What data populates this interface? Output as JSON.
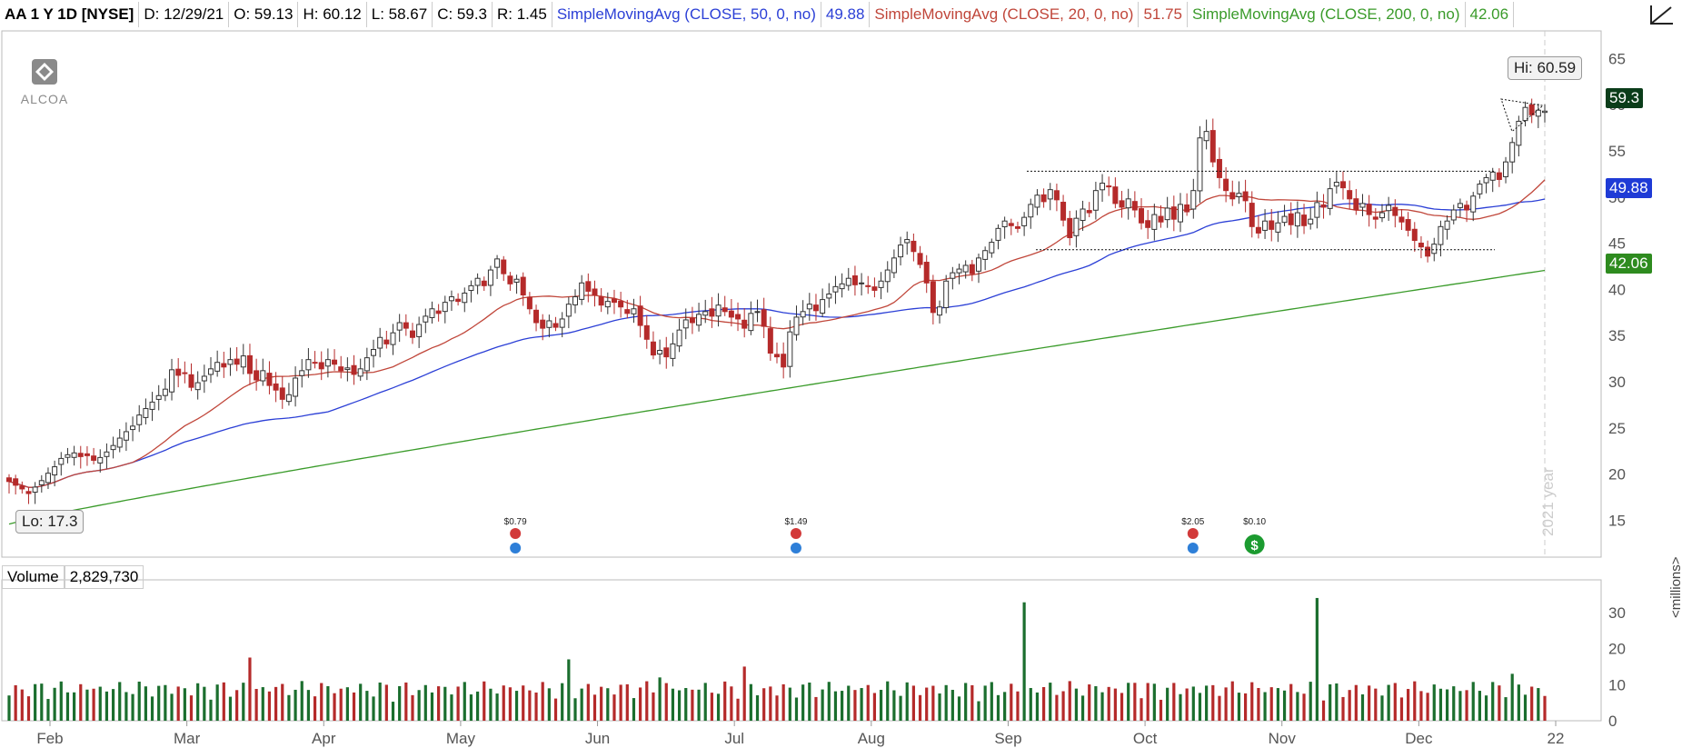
{
  "header": {
    "symbol": "AA 1 Y 1D [NYSE]",
    "date": "D: 12/29/21",
    "open": "O: 59.13",
    "high": "H: 60.12",
    "low": "L: 58.67",
    "close": "C: 59.3",
    "range": "R: 1.45",
    "sma50_label": "SimpleMovingAvg (CLOSE, 50, 0, no)",
    "sma50_value": "49.88",
    "sma20_label": "SimpleMovingAvg (CLOSE, 20, 0, no)",
    "sma20_value": "51.75",
    "sma200_label": "SimpleMovingAvg (CLOSE, 200, 0, no)",
    "sma200_value": "42.06"
  },
  "logo": {
    "text": "ALCOA"
  },
  "price_tags": {
    "last": "59.3",
    "sma50": "49.88",
    "sma200": "42.06"
  },
  "callouts": {
    "hi": "Hi: 60.59",
    "lo": "Lo: 17.3"
  },
  "year_watermark": "2021 year",
  "volume_panel": {
    "label": "Volume",
    "value": "2,829,730",
    "unit": "<millions>"
  },
  "dividends": [
    {
      "month_index": 3.4,
      "label": "$0.79"
    },
    {
      "month_index": 5.45,
      "label": "$1.49"
    },
    {
      "month_index": 8.35,
      "label": "$2.05"
    },
    {
      "month_index": 8.8,
      "label": "$0.10"
    }
  ],
  "colors": {
    "up": "#1b6e2e",
    "down": "#b52a2a",
    "sma50": "#2b3fd6",
    "sma20": "#c0463a",
    "sma200": "#3a9b2a",
    "tag_dark": "#0b3d1a",
    "tag_blue": "#1f3bd6",
    "tag_green": "#2e8b1f"
  },
  "chart_data": {
    "type": "candlestick",
    "x_tick_labels": [
      "Feb",
      "Mar",
      "Apr",
      "May",
      "Jun",
      "Jul",
      "Aug",
      "Sep",
      "Oct",
      "Nov",
      "Dec",
      "22"
    ],
    "y_ticks": [
      15,
      20,
      25,
      30,
      35,
      40,
      45,
      50,
      55,
      60,
      65
    ],
    "ylim": [
      12,
      67
    ],
    "volume_ticks": [
      0,
      10,
      20,
      30
    ],
    "volume_ylim": [
      0,
      36
    ],
    "closes": [
      19.2,
      18.8,
      18.4,
      17.9,
      18.6,
      19.3,
      20.1,
      20.8,
      21.7,
      22.1,
      22.3,
      21.9,
      22.0,
      21.5,
      21.8,
      22.4,
      23.1,
      23.9,
      24.6,
      25.2,
      26.4,
      27.1,
      27.8,
      28.5,
      29.2,
      31.3,
      30.7,
      30.9,
      29.4,
      29.9,
      30.6,
      31.4,
      32.1,
      31.6,
      32.4,
      31.9,
      32.8,
      30.9,
      30.2,
      31.2,
      29.6,
      29.1,
      28.1,
      28.6,
      30.4,
      31.2,
      32.4,
      32.1,
      31.4,
      32.4,
      31.9,
      31.2,
      31.5,
      30.8,
      31.4,
      32.6,
      33.5,
      34.8,
      34.1,
      35.3,
      36.4,
      35.8,
      34.8,
      36.2,
      37.1,
      37.9,
      37.4,
      38.6,
      39.2,
      38.7,
      39.6,
      40.4,
      41.2,
      40.4,
      42.1,
      43.3,
      41.7,
      40.6,
      41.1,
      39.4,
      37.9,
      36.4,
      35.8,
      36.6,
      35.9,
      36.8,
      38.4,
      39.2,
      40.7,
      39.8,
      39.4,
      38.3,
      38.7,
      38.6,
      38.1,
      37.4,
      37.9,
      36.1,
      34.6,
      32.9,
      33.4,
      32.7,
      34.1,
      35.6,
      36.7,
      36.4,
      37.3,
      37.6,
      37.1,
      38.3,
      37.6,
      37.0,
      36.8,
      35.8,
      37.4,
      37.6,
      36.0,
      33.1,
      32.7,
      31.6,
      35.4,
      37.0,
      37.6,
      38.4,
      37.7,
      38.9,
      39.5,
      40.3,
      40.6,
      41.2,
      40.5,
      40.7,
      40.3,
      39.9,
      40.9,
      42.1,
      43.4,
      44.8,
      45.4,
      44.1,
      42.7,
      40.7,
      37.5,
      38.1,
      40.9,
      41.8,
      42.2,
      42.6,
      41.7,
      43.4,
      44.2,
      45.1,
      46.6,
      47.4,
      46.9,
      46.6,
      47.8,
      49.2,
      50.2,
      49.5,
      50.8,
      49.7,
      47.5,
      45.6,
      47.7,
      48.7,
      48.3,
      50.7,
      51.5,
      51.1,
      49.3,
      48.9,
      49.8,
      48.6,
      47.2,
      46.7,
      48.1,
      47.3,
      48.8,
      47.6,
      49.2,
      48.4,
      50.7,
      56.4,
      57.1,
      53.8,
      52.1,
      50.7,
      49.8,
      50.4,
      49.6,
      46.8,
      46.1,
      47.4,
      46.5,
      47.2,
      47.9,
      47.0,
      48.3,
      46.9,
      47.6,
      49.4,
      48.9,
      50.9,
      51.6,
      51.0,
      49.8,
      48.6,
      49.3,
      48.1,
      47.6,
      48.3,
      49.1,
      48.0,
      47.3,
      46.4,
      45.3,
      44.6,
      43.6,
      44.9,
      46.8,
      47.4,
      48.6,
      49.3,
      48.6,
      50.1,
      51.4,
      52.1,
      52.7,
      51.9,
      53.8,
      55.9,
      58.2,
      59.7,
      58.9,
      59.4,
      59.3
    ]
  }
}
